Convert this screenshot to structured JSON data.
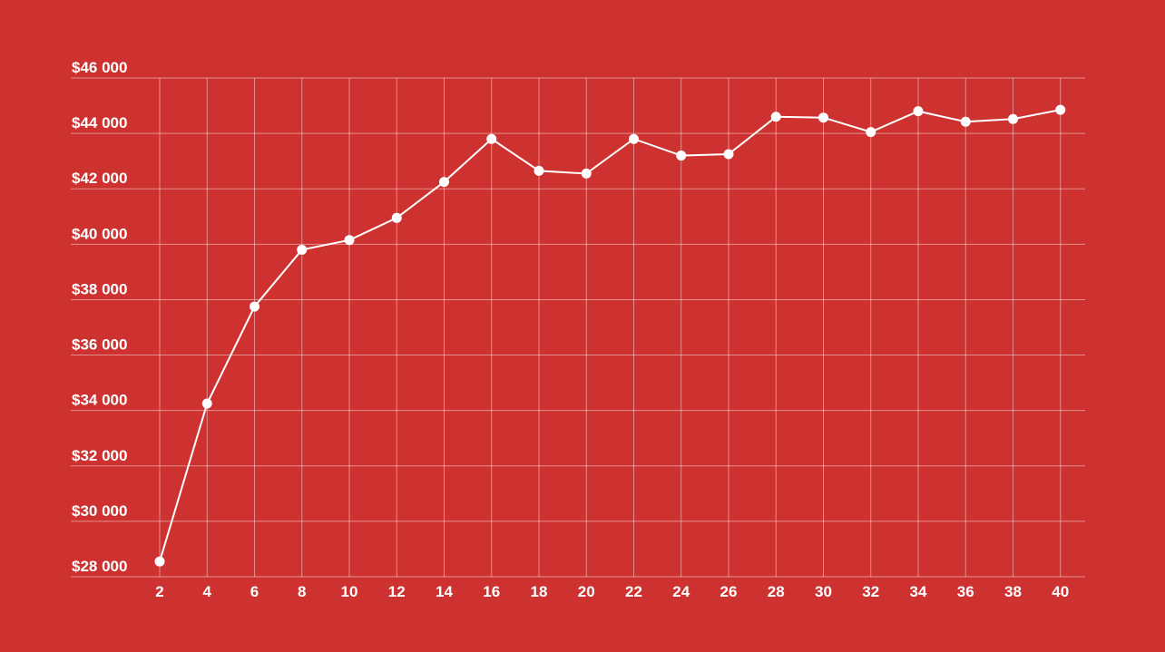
{
  "theme": {
    "background": "#cd3230",
    "foreground": "#ffffff"
  },
  "chart_data": {
    "type": "line",
    "title": "",
    "xlabel": "",
    "ylabel": "",
    "grid": true,
    "legend": "none",
    "x": [
      2,
      4,
      6,
      8,
      10,
      12,
      14,
      16,
      18,
      20,
      22,
      24,
      26,
      28,
      30,
      32,
      34,
      36,
      38,
      40
    ],
    "x_ticks": [
      "2",
      "4",
      "6",
      "8",
      "10",
      "12",
      "14",
      "16",
      "18",
      "20",
      "22",
      "24",
      "26",
      "28",
      "30",
      "32",
      "34",
      "36",
      "38",
      "40"
    ],
    "y_ticks": [
      28000,
      30000,
      32000,
      34000,
      36000,
      38000,
      40000,
      42000,
      44000,
      46000
    ],
    "y_tick_labels": [
      "$28 000",
      "$30 000",
      "$32 000",
      "$34 000",
      "$36 000",
      "$38 000",
      "$40 000",
      "$42 000",
      "$44 000",
      "$46 000"
    ],
    "ylim": [
      28000,
      46000
    ],
    "series": [
      {
        "values": [
          28550,
          34250,
          37750,
          39800,
          40150,
          40950,
          42250,
          43800,
          42650,
          42550,
          43800,
          43200,
          43250,
          44600,
          44570,
          44050,
          44800,
          44420,
          44520,
          44850
        ]
      }
    ]
  }
}
